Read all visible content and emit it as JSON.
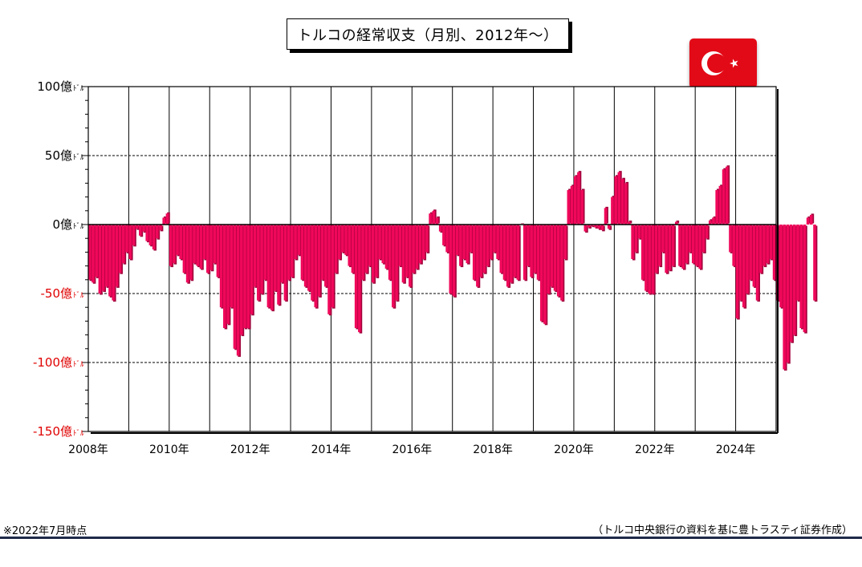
{
  "title": "トルコの経常収支（月別、2012年～）",
  "note_left": "※2022年7月時点",
  "note_right": "（トルコ中央銀行の資料を基に豊トラスティ証券作成）",
  "colors": {
    "bar": "#f0085a",
    "bar_side": "#a0003a",
    "negative_label": "#e00000",
    "flag": "#e30a17"
  },
  "chart_data": {
    "type": "bar",
    "unit": "億ドル",
    "ylim": [
      -150,
      100
    ],
    "xlim": [
      2008,
      2025
    ],
    "yticks": [
      {
        "value": 100,
        "label": "100億",
        "suffix": "ﾄﾞﾙ"
      },
      {
        "value": 50,
        "label": "50億",
        "suffix": "ﾄﾞﾙ"
      },
      {
        "value": 0,
        "label": "0億",
        "suffix": "ﾄﾞﾙ"
      },
      {
        "value": -50,
        "label": "-50億",
        "suffix": "ﾄﾞﾙ"
      },
      {
        "value": -100,
        "label": "-100億",
        "suffix": "ﾄﾞﾙ"
      },
      {
        "value": -150,
        "label": "-150億",
        "suffix": "ﾄﾞﾙ"
      }
    ],
    "xticks": [
      "2008年",
      "2010年",
      "2012年",
      "2014年",
      "2016年",
      "2018年",
      "2020年",
      "2022年",
      "2024年"
    ],
    "dashed_gridlines": [
      50,
      -50,
      -100
    ],
    "start": "2008-01",
    "values": [
      -40,
      -42,
      -38,
      -50,
      -48,
      -45,
      -52,
      -55,
      -45,
      -35,
      -28,
      -20,
      -25,
      -15,
      -3,
      -8,
      -5,
      -12,
      -15,
      -18,
      -10,
      -4,
      5,
      8,
      -30,
      -28,
      -22,
      -25,
      -35,
      -42,
      -40,
      -28,
      -30,
      -32,
      -25,
      -35,
      -33,
      -28,
      -38,
      -60,
      -75,
      -72,
      -60,
      -90,
      -95,
      -80,
      -75,
      -75,
      -65,
      -45,
      -55,
      -50,
      -40,
      -60,
      -62,
      -48,
      -58,
      -42,
      -55,
      -40,
      -38,
      -25,
      -22,
      -40,
      -45,
      -48,
      -55,
      -60,
      -52,
      -40,
      -45,
      -65,
      -60,
      -35,
      -25,
      -20,
      -22,
      -30,
      -35,
      -75,
      -78,
      -40,
      -35,
      -30,
      -42,
      -38,
      -25,
      -28,
      -32,
      -40,
      -60,
      -55,
      -30,
      -42,
      -38,
      -45,
      -35,
      -32,
      -28,
      -25,
      -20,
      8,
      10,
      5,
      -5,
      -15,
      -20,
      -50,
      -52,
      -22,
      -30,
      -25,
      -28,
      -20,
      -40,
      -45,
      -38,
      -35,
      -30,
      -25,
      -20,
      -25,
      -35,
      -40,
      -45,
      -42,
      -38,
      -40,
      0,
      -40,
      -30,
      -38,
      -35,
      -40,
      -70,
      -72,
      -50,
      -45,
      -48,
      -52,
      -55,
      -25,
      25,
      28,
      35,
      38,
      25,
      -5,
      -2,
      -1,
      -2,
      -3,
      -4,
      12,
      -3,
      20,
      35,
      38,
      33,
      30,
      2,
      -25,
      -20,
      -10,
      -40,
      -48,
      -50,
      -50,
      -35,
      -30,
      -20,
      -35,
      -33,
      -30,
      2,
      -30,
      -32,
      -28,
      -20,
      -28,
      -30,
      -32,
      -20,
      -10,
      3,
      5,
      25,
      28,
      40,
      42,
      -20,
      -30,
      -68,
      -55,
      -60,
      -50,
      -40,
      -45,
      -55,
      -35,
      -30,
      -28,
      -25,
      -40,
      -55,
      -60,
      -105,
      -100,
      -85,
      -80,
      -55,
      -75,
      -78,
      5,
      7,
      -55
    ]
  }
}
